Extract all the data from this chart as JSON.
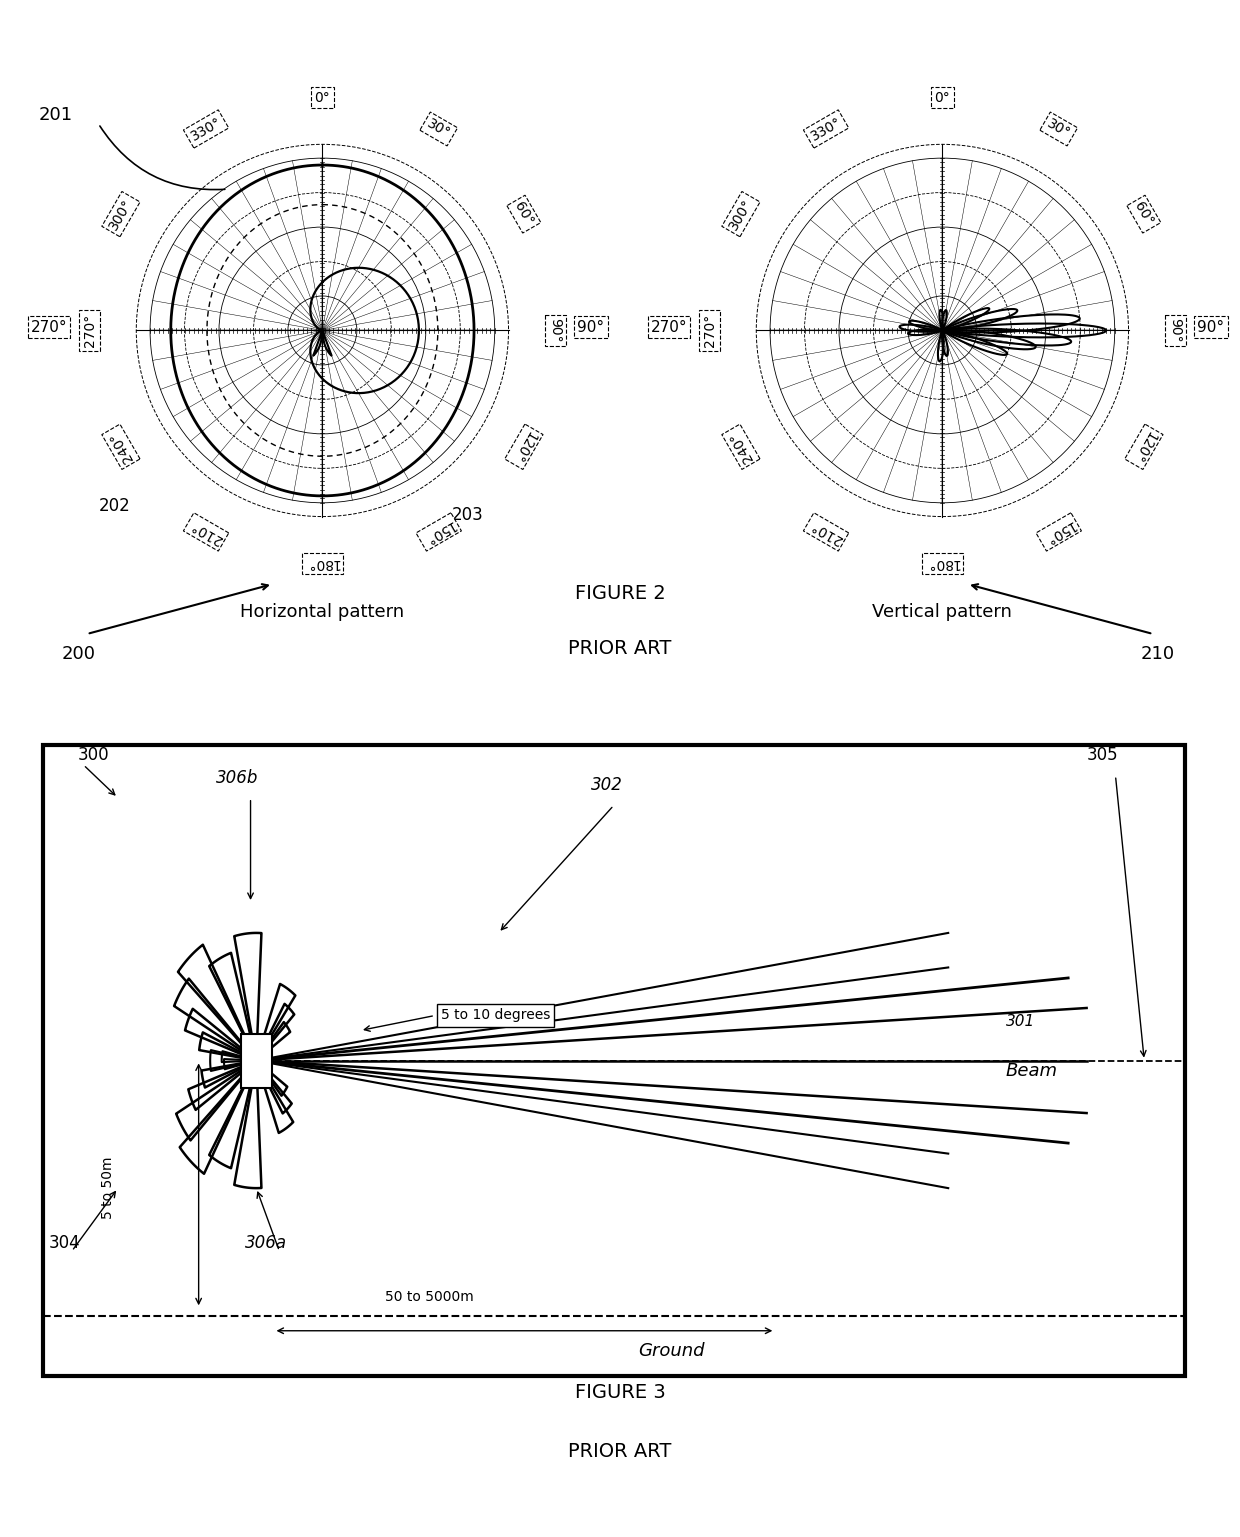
{
  "figure_width": 12.4,
  "figure_height": 15.37,
  "bg_color": "#ffffff",
  "fig2_caption": "FIGURE 2",
  "fig2_prior": "PRIOR ART",
  "fig3_caption": "FIGURE 3",
  "fig3_prior": "PRIOR ART",
  "label_horiz": "Horizontal pattern",
  "label_vert": "Vertical pattern",
  "angle_degs": [
    0,
    30,
    60,
    90,
    120,
    150,
    180,
    210,
    240,
    270,
    300,
    330
  ],
  "angle_texts": [
    "0°",
    "30°",
    "60°",
    "90°",
    "120°",
    "150°",
    "180°",
    "210°",
    "240°",
    "270°",
    "300°",
    "330°"
  ]
}
